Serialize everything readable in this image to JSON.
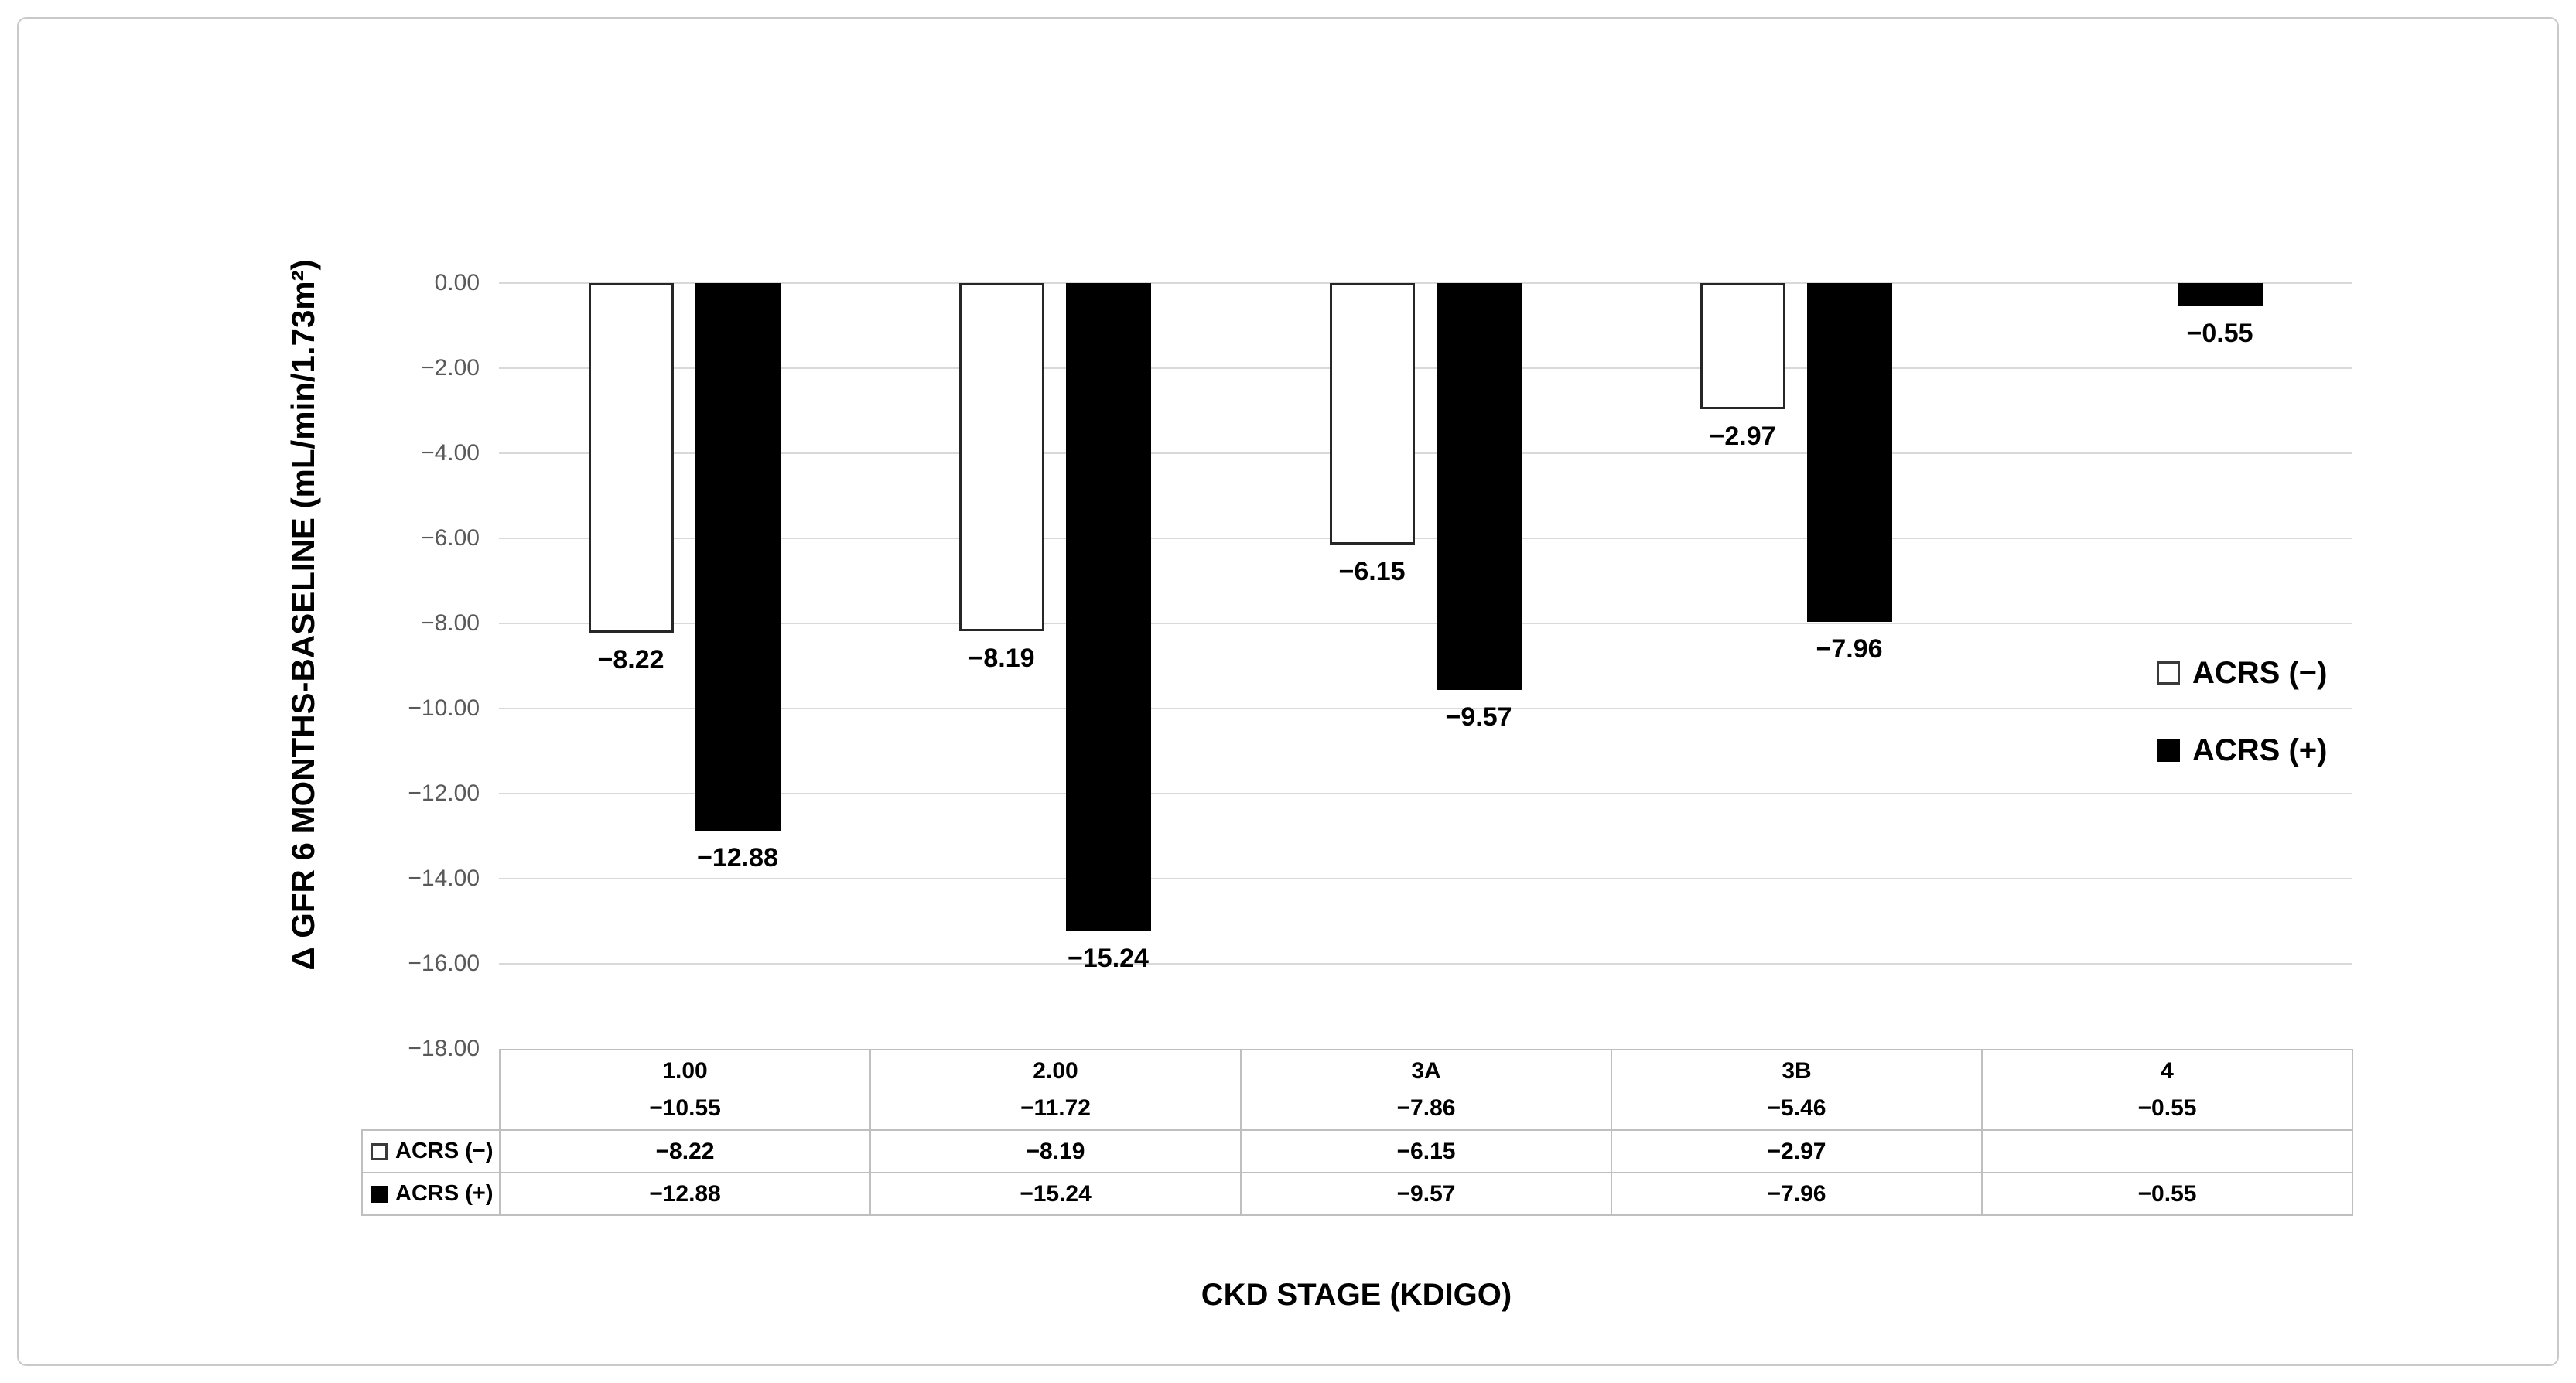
{
  "axes": {
    "y_title": "Δ GFR 6 MONTHS-BASELINE (mL/min/1.73m²)",
    "x_title": "CKD STAGE (KDIGO)"
  },
  "chart_data": {
    "type": "bar",
    "title": "",
    "xlabel": "CKD STAGE (KDIGO)",
    "ylabel": "Δ GFR 6 MONTHS-BASELINE (mL/min/1.73m²)",
    "categories": [
      "1.00",
      "2.00",
      "3A",
      "3B",
      "4"
    ],
    "category_sublabels": [
      "−10.55",
      "−11.72",
      "−7.86",
      "−5.46",
      "−0.55"
    ],
    "series": [
      {
        "name": "ACRS (−)",
        "fill": "#ffffff",
        "outline": "#262626",
        "values": [
          -8.22,
          -8.19,
          -6.15,
          -2.97,
          null
        ],
        "labels": [
          "−8.22",
          "−8.19",
          "−6.15",
          "−2.97",
          ""
        ]
      },
      {
        "name": "ACRS (+)",
        "fill": "#000000",
        "outline": "#000000",
        "values": [
          -12.88,
          -15.24,
          -9.57,
          -7.96,
          -0.55
        ],
        "labels": [
          "−12.88",
          "−15.24",
          "−9.57",
          "−7.96",
          "−0.55"
        ]
      }
    ],
    "ylim": [
      0,
      -18
    ],
    "y_tick_step": 2,
    "y_ticks": [
      "0.00",
      "−2.00",
      "−4.00",
      "−6.00",
      "−8.00",
      "−10.00",
      "−12.00",
      "−14.00",
      "−16.00",
      "−18.00"
    ],
    "grid": true,
    "gridline_color": "#d9d9d9",
    "legend_position": "right-middle",
    "data_table_shown": true
  },
  "legend": {
    "items": [
      {
        "label": "ACRS (−)",
        "swatch": "white"
      },
      {
        "label": "ACRS (+)",
        "swatch": "black"
      }
    ]
  },
  "table": {
    "columns": [
      "1.00",
      "2.00",
      "3A",
      "3B",
      "4"
    ],
    "column_values": [
      "−10.55",
      "−11.72",
      "−7.86",
      "−5.46",
      "−0.55"
    ],
    "rows": [
      {
        "key": "ACRS (−)",
        "swatch": "white",
        "cells": [
          "−8.22",
          "−8.19",
          "−6.15",
          "−2.97",
          ""
        ]
      },
      {
        "key": "ACRS (+)",
        "swatch": "black",
        "cells": [
          "−12.88",
          "−15.24",
          "−9.57",
          "−7.96",
          "−0.55"
        ]
      }
    ]
  }
}
